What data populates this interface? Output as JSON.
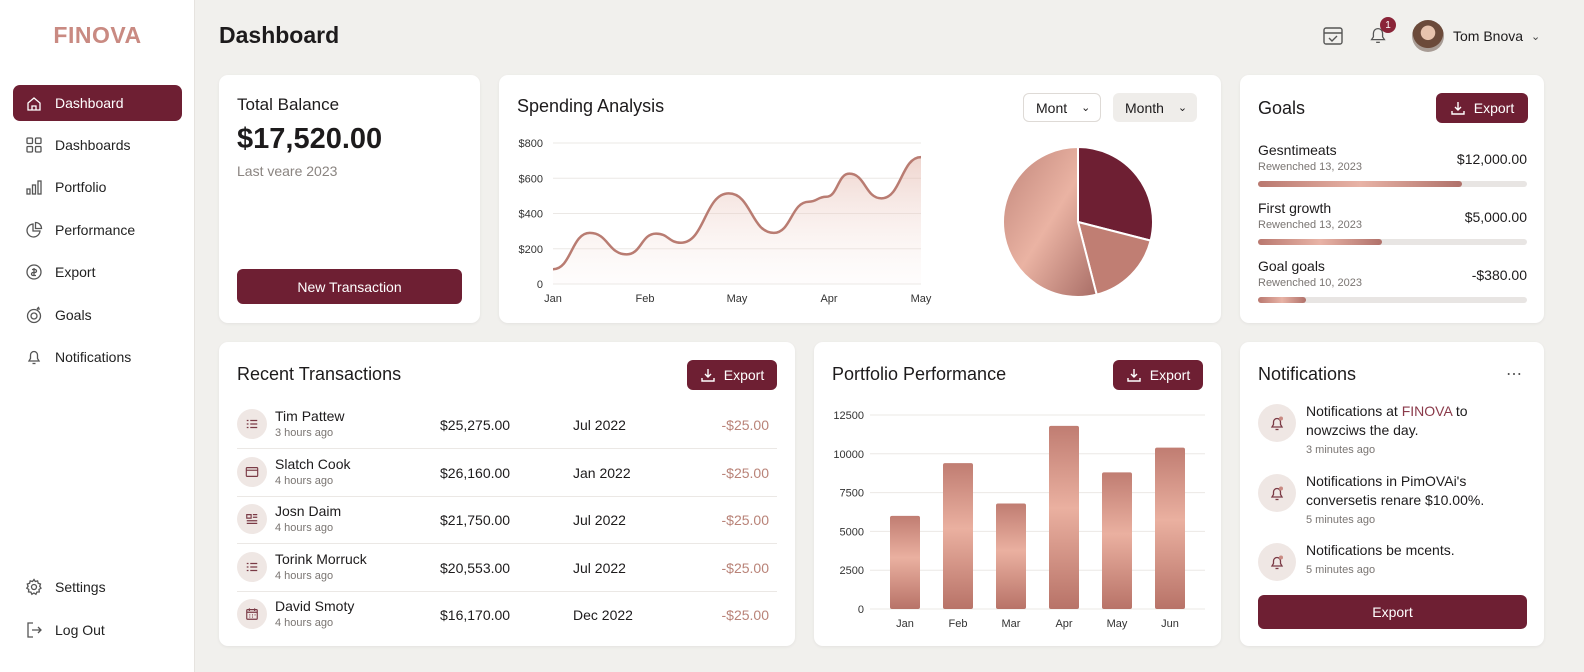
{
  "brand": "FINOVA",
  "page_title": "Dashboard",
  "sidebar": {
    "items": [
      {
        "label": "Dashboard",
        "icon": "home-icon",
        "active": true
      },
      {
        "label": "Dashboards",
        "icon": "grid-icon"
      },
      {
        "label": "Portfolio",
        "icon": "bar-chart-icon"
      },
      {
        "label": "Performance",
        "icon": "pie-chart-icon"
      },
      {
        "label": "Export",
        "icon": "dollar-refresh-icon"
      },
      {
        "label": "Goals",
        "icon": "goal-icon"
      },
      {
        "label": "Notifications",
        "icon": "bell-icon"
      }
    ],
    "bottom": [
      {
        "label": "Settings",
        "icon": "gear-icon"
      },
      {
        "label": "Log Out",
        "icon": "logout-icon"
      }
    ]
  },
  "header": {
    "user_name": "Tom Bnova",
    "notification_count": "1"
  },
  "balance": {
    "title": "Total Balance",
    "amount": "$17,520.00",
    "subtitle": "Last veare 2023",
    "button": "New Transaction"
  },
  "spending": {
    "title": "Spending Analysis",
    "select1": "Mont",
    "select2": "Month"
  },
  "goals": {
    "title": "Goals",
    "export": "Export",
    "items": [
      {
        "name": "Gesntimeats",
        "date": "Rewenched 13, 2023",
        "amount": "$12,000.00",
        "progress": 0.76
      },
      {
        "name": "First growth",
        "date": "Rewenched 13, 2023",
        "amount": "$5,000.00",
        "progress": 0.46
      },
      {
        "name": "Goal goals",
        "date": "Rewenched 10, 2023",
        "amount": "-$380.00",
        "progress": 0.18
      }
    ]
  },
  "transactions": {
    "title": "Recent Transactions",
    "export": "Export",
    "rows": [
      {
        "name": "Tim Pattew",
        "time": "3 hours ago",
        "amount": "$25,275.00",
        "date": "Jul 2022",
        "fee": "-$25.00",
        "icon": "list-icon"
      },
      {
        "name": "Slatch Cook",
        "time": "4 hours ago",
        "amount": "$26,160.00",
        "date": "Jan 2022",
        "fee": "-$25.00",
        "icon": "card-icon"
      },
      {
        "name": "Josn Daim",
        "time": "4 hours ago",
        "amount": "$21,750.00",
        "date": "Jul 2022",
        "fee": "-$25.00",
        "icon": "receipt-icon"
      },
      {
        "name": "Torink Morruck",
        "time": "4 hours ago",
        "amount": "$20,553.00",
        "date": "Jul 2022",
        "fee": "-$25.00",
        "icon": "list-icon"
      },
      {
        "name": "David Smoty",
        "time": "4 hours ago",
        "amount": "$16,170.00",
        "date": "Dec 2022",
        "fee": "-$25.00",
        "icon": "calendar-icon"
      }
    ]
  },
  "portfolio": {
    "title": "Portfolio Performance",
    "export": "Export"
  },
  "notifications": {
    "title": "Notifications",
    "button": "Export",
    "items": [
      {
        "pre": "Notifications at ",
        "highlight": "FINOVA",
        "post": " to nowzciws the day.",
        "time": "3 minutes ago"
      },
      {
        "pre": "Notifications in PimOVAi's conversetis renare $10.00%.",
        "highlight": "",
        "post": "",
        "time": "5 minutes ago"
      },
      {
        "pre": "Notifications be mcents.",
        "highlight": "",
        "post": "",
        "time": "5 minutes ago"
      }
    ]
  },
  "colors": {
    "accent": "#6e1f33",
    "rose": "#c98a82",
    "brand": "#c98a82"
  },
  "chart_data": [
    {
      "type": "area",
      "title": "Spending Analysis",
      "categories": [
        "Jan",
        "Feb",
        "May",
        "Apr",
        "May"
      ],
      "y_ticks": [
        "0",
        "$200",
        "$400",
        "$600",
        "$800"
      ],
      "ylim": [
        0,
        800
      ],
      "grid": true,
      "points": [
        [
          0,
          84
        ],
        [
          0.4,
          290
        ],
        [
          0.8,
          168
        ],
        [
          1.12,
          286
        ],
        [
          1.39,
          234
        ],
        [
          1.91,
          514
        ],
        [
          2.4,
          290
        ],
        [
          2.78,
          467
        ],
        [
          2.97,
          495
        ],
        [
          3.22,
          626
        ],
        [
          3.57,
          486
        ],
        [
          4,
          720
        ]
      ]
    },
    {
      "type": "pie",
      "values": [
        29,
        17,
        54
      ],
      "colors": [
        "#6e1f33",
        "#c07e73",
        "#d39a8c"
      ]
    },
    {
      "type": "bar",
      "title": "Portfolio Performance",
      "categories": [
        "Jan",
        "Feb",
        "Mar",
        "Apr",
        "May",
        "Jun"
      ],
      "values": [
        6000,
        9400,
        6800,
        11800,
        8800,
        10400
      ],
      "y_ticks": [
        0,
        2500,
        5000,
        7500,
        10000,
        12500
      ],
      "ylim": [
        0,
        12500
      ],
      "grid": true
    }
  ]
}
